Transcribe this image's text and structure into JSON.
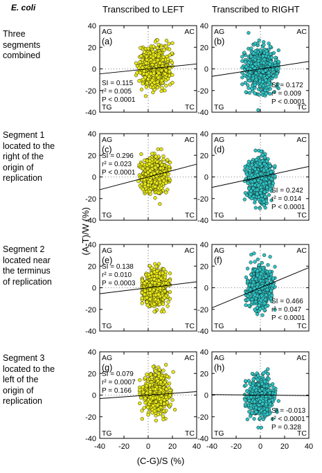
{
  "figure": {
    "species": "E. coli",
    "column_titles": [
      "Transcribed to LEFT",
      "Transcribed to RIGHT"
    ],
    "y_axis_label": "(A-T)/W (%)",
    "x_axis_label": "(C-G)/S (%)",
    "corner_labels": [
      "AG",
      "AC",
      "TG",
      "TC"
    ],
    "colors": {
      "left_points": "#e8e816",
      "right_points": "#2ec4c4",
      "outline": "#111111"
    }
  },
  "rows": [
    {
      "label": "Three\nsegments\ncombined"
    },
    {
      "label": "Segment 1\nlocated to the\nright of the\norigin of\nreplication"
    },
    {
      "label": "Segment 2\nlocated near\nthe terminus\nof replication"
    },
    {
      "label": "Segment 3\nlocated to the\nleft of the\norigin of\nreplication"
    }
  ],
  "chart_data": [
    {
      "type": "scatter",
      "panel": "(a)",
      "column": "Transcribed to LEFT",
      "row": "Three segments combined",
      "xlim": [
        -40,
        40
      ],
      "ylim": [
        -40,
        40
      ],
      "x_ticks": [
        "-40",
        "-20",
        "0",
        "20",
        "40"
      ],
      "y_ticks": [
        "40",
        "20",
        "0",
        "-20",
        "-40"
      ],
      "points_center": [
        5,
        2
      ],
      "points_spread": [
        6,
        9
      ],
      "points_range_x": [
        -10,
        20
      ],
      "points_range_y": [
        -30,
        35
      ],
      "fit_line": {
        "x": [
          -40,
          40
        ],
        "y": [
          -4.6,
          4.6
        ]
      },
      "stats": [
        "SI = 0.115",
        "r² = 0.005",
        "P < 0.0001"
      ]
    },
    {
      "type": "scatter",
      "panel": "(b)",
      "column": "Transcribed to RIGHT",
      "row": "Three segments combined",
      "xlim": [
        -40,
        40
      ],
      "ylim": [
        -40,
        40
      ],
      "x_ticks": [
        "-40",
        "-20",
        "0",
        "20",
        "40"
      ],
      "y_ticks": [
        "40",
        "20",
        "0",
        "-20",
        "-40"
      ],
      "points_center": [
        0,
        0
      ],
      "points_spread": [
        6,
        10
      ],
      "points_range_x": [
        -15,
        15
      ],
      "points_range_y": [
        -38,
        40
      ],
      "fit_line": {
        "x": [
          -40,
          40
        ],
        "y": [
          -6.9,
          6.9
        ]
      },
      "stats": [
        "SI = 0.172",
        "r² = 0.009",
        "P < 0.0001"
      ]
    },
    {
      "type": "scatter",
      "panel": "(c)",
      "column": "Transcribed to LEFT",
      "row": "Segment 1",
      "xlim": [
        -40,
        40
      ],
      "ylim": [
        -40,
        40
      ],
      "x_ticks": [
        "-40",
        "-20",
        "0",
        "20",
        "40"
      ],
      "y_ticks": [
        "40",
        "20",
        "0",
        "-20",
        "-40"
      ],
      "points_center": [
        5,
        2
      ],
      "points_spread": [
        5,
        8
      ],
      "points_range_x": [
        -8,
        18
      ],
      "points_range_y": [
        -30,
        30
      ],
      "fit_line": {
        "x": [
          -40,
          40
        ],
        "y": [
          -11.8,
          11.8
        ]
      },
      "stats": [
        "SI = 0.296",
        "r² = 0.023",
        "P < 0.0001"
      ]
    },
    {
      "type": "scatter",
      "panel": "(d)",
      "column": "Transcribed to RIGHT",
      "row": "Segment 1",
      "xlim": [
        -40,
        40
      ],
      "ylim": [
        -40,
        40
      ],
      "x_ticks": [
        "-40",
        "-20",
        "0",
        "20",
        "40"
      ],
      "y_ticks": [
        "40",
        "20",
        "0",
        "-20",
        "-40"
      ],
      "points_center": [
        0,
        -2
      ],
      "points_spread": [
        5,
        10
      ],
      "points_range_x": [
        -13,
        12
      ],
      "points_range_y": [
        -33,
        25
      ],
      "fit_line": {
        "x": [
          -40,
          40
        ],
        "y": [
          -9.7,
          9.7
        ]
      },
      "stats": [
        "SI = 0.242",
        "r² = 0.014",
        "P < 0.0001"
      ]
    },
    {
      "type": "scatter",
      "panel": "(e)",
      "column": "Transcribed to LEFT",
      "row": "Segment 2",
      "xlim": [
        -40,
        40
      ],
      "ylim": [
        -40,
        40
      ],
      "x_ticks": [
        "-40",
        "-20",
        "0",
        "20",
        "40"
      ],
      "y_ticks": [
        "40",
        "20",
        "0",
        "-20",
        "-40"
      ],
      "points_center": [
        6,
        0
      ],
      "points_spread": [
        5,
        8
      ],
      "points_range_x": [
        -5,
        18
      ],
      "points_range_y": [
        -22,
        22
      ],
      "fit_line": {
        "x": [
          -40,
          40
        ],
        "y": [
          -5.5,
          5.5
        ]
      },
      "stats": [
        "SI = 0.138",
        "r² = 0.010",
        "P = 0.0003"
      ]
    },
    {
      "type": "scatter",
      "panel": "(f)",
      "column": "Transcribed to RIGHT",
      "row": "Segment 2",
      "xlim": [
        -40,
        40
      ],
      "ylim": [
        -40,
        40
      ],
      "x_ticks": [
        "-40",
        "-20",
        "0",
        "20",
        "40"
      ],
      "y_ticks": [
        "40",
        "20",
        "0",
        "-20",
        "-40"
      ],
      "points_center": [
        0,
        0
      ],
      "points_spread": [
        5,
        9
      ],
      "points_range_x": [
        -12,
        12
      ],
      "points_range_y": [
        -30,
        38
      ],
      "fit_line": {
        "x": [
          -40,
          40
        ],
        "y": [
          -18.6,
          18.6
        ]
      },
      "stats": [
        "SI = 0.466",
        "r² = 0.047",
        "P < 0.0001"
      ]
    },
    {
      "type": "scatter",
      "panel": "(g)",
      "column": "Transcribed to LEFT",
      "row": "Segment 3",
      "xlim": [
        -40,
        40
      ],
      "ylim": [
        -40,
        40
      ],
      "x_ticks": [
        "-40",
        "-20",
        "0",
        "20",
        "40"
      ],
      "y_ticks": [
        "40",
        "20",
        "0",
        "-20",
        "-40"
      ],
      "points_center": [
        7,
        2
      ],
      "points_spread": [
        5,
        9
      ],
      "points_range_x": [
        -7,
        22
      ],
      "points_range_y": [
        -28,
        28
      ],
      "fit_line": {
        "x": [
          -40,
          40
        ],
        "y": [
          -3.2,
          3.2
        ]
      },
      "stats": [
        "SI = 0.079",
        "r² = 0.0007",
        "P = 0.166"
      ]
    },
    {
      "type": "scatter",
      "panel": "(h)",
      "column": "Transcribed to RIGHT",
      "row": "Segment 3",
      "xlim": [
        -40,
        40
      ],
      "ylim": [
        -40,
        40
      ],
      "x_ticks": [
        "-40",
        "-20",
        "0",
        "20",
        "40"
      ],
      "y_ticks": [
        "40",
        "20",
        "0",
        "-20",
        "-40"
      ],
      "points_center": [
        0,
        -2
      ],
      "points_spread": [
        5,
        8
      ],
      "points_range_x": [
        -13,
        15
      ],
      "points_range_y": [
        -30,
        24
      ],
      "fit_line": {
        "x": [
          -40,
          40
        ],
        "y": [
          0.5,
          -0.5
        ]
      },
      "stats": [
        "SI = -0.013",
        "r² < 0.0001",
        "P = 0.328"
      ]
    }
  ]
}
